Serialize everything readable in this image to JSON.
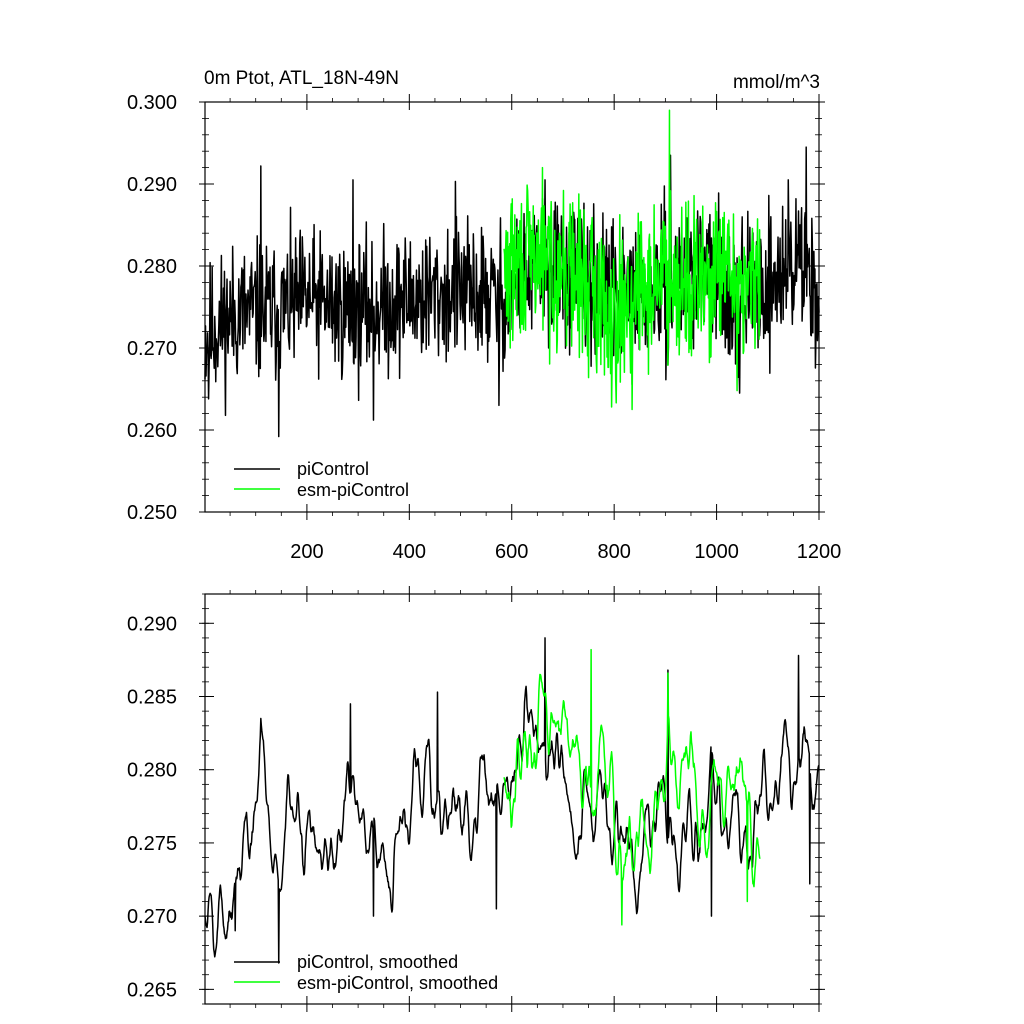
{
  "colors": {
    "piControl": "#000000",
    "esm_piControl": "#00ff00",
    "frame": "#000000",
    "background": "#ffffff"
  },
  "chart_data": [
    {
      "type": "line",
      "title": "0m Ptot, ATL_18N-49N",
      "units": "mmol/m^3",
      "xlim": [
        1,
        1200
      ],
      "ylim": [
        0.25,
        0.3
      ],
      "xticks": [
        200,
        400,
        600,
        800,
        1000,
        1200
      ],
      "xtick_labels": [
        "200",
        "400",
        "600",
        "800",
        "1000",
        "1200"
      ],
      "yticks": [
        0.25,
        0.26,
        0.27,
        0.28,
        0.29,
        0.3
      ],
      "ytick_labels": [
        "0.250",
        "0.260",
        "0.270",
        "0.280",
        "0.290",
        "0.300"
      ],
      "legend_position": "bottom-left",
      "series": [
        {
          "name": "piControl",
          "color": "#000000",
          "x_range": [
            1,
            1200
          ],
          "noisy": true,
          "seed": 11,
          "noise": 0.0068,
          "anchors": [
            [
              1,
              0.2715
            ],
            [
              60,
              0.2742
            ],
            [
              140,
              0.2745
            ],
            [
              200,
              0.2758
            ],
            [
              300,
              0.2745
            ],
            [
              400,
              0.276
            ],
            [
              500,
              0.2768
            ],
            [
              580,
              0.276
            ],
            [
              660,
              0.2805
            ],
            [
              760,
              0.277
            ],
            [
              860,
              0.2762
            ],
            [
              960,
              0.2795
            ],
            [
              1060,
              0.2762
            ],
            [
              1120,
              0.2785
            ],
            [
              1160,
              0.281
            ],
            [
              1200,
              0.277
            ]
          ],
          "events": [
            [
              8,
              0.2638
            ],
            [
              110,
              0.2922
            ],
            [
              145,
              0.2592
            ],
            [
              290,
              0.2905
            ],
            [
              330,
              0.2612
            ],
            [
              490,
              0.2903
            ],
            [
              575,
              0.263
            ],
            [
              665,
              0.2905
            ],
            [
              910,
              0.2935
            ],
            [
              1045,
              0.2645
            ],
            [
              1140,
              0.2905
            ],
            [
              1175,
              0.2945
            ]
          ]
        },
        {
          "name": "esm-piControl",
          "color": "#00ff00",
          "x_range": [
            585,
            1085
          ],
          "noisy": true,
          "seed": 29,
          "noise": 0.0075,
          "anchors": [
            [
              585,
              0.279
            ],
            [
              650,
              0.281
            ],
            [
              720,
              0.279
            ],
            [
              800,
              0.2745
            ],
            [
              860,
              0.277
            ],
            [
              910,
              0.28
            ],
            [
              960,
              0.2775
            ],
            [
              1020,
              0.279
            ],
            [
              1085,
              0.277
            ]
          ],
          "events": [
            [
              660,
              0.292
            ],
            [
              795,
              0.2628
            ],
            [
              835,
              0.2625
            ],
            [
              908,
              0.299
            ],
            [
              1040,
              0.2648
            ]
          ]
        }
      ],
      "legend": [
        "piControl",
        "esm-piControl"
      ]
    },
    {
      "type": "line",
      "title": "",
      "xlim": [
        1,
        1200
      ],
      "ylim": [
        0.264,
        0.292
      ],
      "xticks": [
        200,
        400,
        600,
        800,
        1000,
        1200
      ],
      "yticks": [
        0.265,
        0.27,
        0.275,
        0.28,
        0.285,
        0.29
      ],
      "ytick_labels": [
        "0.265",
        "0.270",
        "0.275",
        "0.280",
        "0.285",
        "0.290"
      ],
      "legend_position": "bottom-left",
      "series": [
        {
          "name": "piControl, smoothed",
          "color": "#000000",
          "x_range": [
            1,
            1200
          ],
          "noisy": false,
          "seed": 5,
          "noise": 0.0042,
          "anchors": [
            [
              1,
              0.2705
            ],
            [
              60,
              0.2735
            ],
            [
              110,
              0.279
            ],
            [
              140,
              0.273
            ],
            [
              200,
              0.2765
            ],
            [
              300,
              0.2755
            ],
            [
              360,
              0.2735
            ],
            [
              430,
              0.279
            ],
            [
              500,
              0.276
            ],
            [
              580,
              0.279
            ],
            [
              660,
              0.2825
            ],
            [
              720,
              0.278
            ],
            [
              800,
              0.2745
            ],
            [
              860,
              0.277
            ],
            [
              920,
              0.279
            ],
            [
              980,
              0.276
            ],
            [
              1060,
              0.276
            ],
            [
              1120,
              0.279
            ],
            [
              1170,
              0.283
            ],
            [
              1200,
              0.2765
            ]
          ],
          "events": [
            [
              60,
              0.269
            ],
            [
              110,
              0.2835
            ],
            [
              145,
              0.2668
            ],
            [
              285,
              0.2845
            ],
            [
              330,
              0.27
            ],
            [
              455,
              0.2853
            ],
            [
              570,
              0.2705
            ],
            [
              665,
              0.289
            ],
            [
              905,
              0.2868
            ],
            [
              990,
              0.27
            ],
            [
              1160,
              0.2878
            ],
            [
              1182,
              0.2722
            ]
          ]
        },
        {
          "name": "esm-piControl, smoothed",
          "color": "#00ff00",
          "x_range": [
            585,
            1085
          ],
          "noisy": false,
          "seed": 17,
          "noise": 0.0045,
          "anchors": [
            [
              585,
              0.28
            ],
            [
              640,
              0.283
            ],
            [
              700,
              0.2815
            ],
            [
              780,
              0.279
            ],
            [
              820,
              0.2745
            ],
            [
              870,
              0.277
            ],
            [
              920,
              0.279
            ],
            [
              980,
              0.278
            ],
            [
              1040,
              0.279
            ],
            [
              1085,
              0.2755
            ]
          ],
          "events": [
            [
              655,
              0.2865
            ],
            [
              755,
              0.2882
            ],
            [
              815,
              0.2694
            ],
            [
              905,
              0.2866
            ],
            [
              1060,
              0.271
            ]
          ]
        }
      ],
      "legend": [
        "piControl, smoothed",
        "esm-piControl, smoothed"
      ]
    }
  ]
}
